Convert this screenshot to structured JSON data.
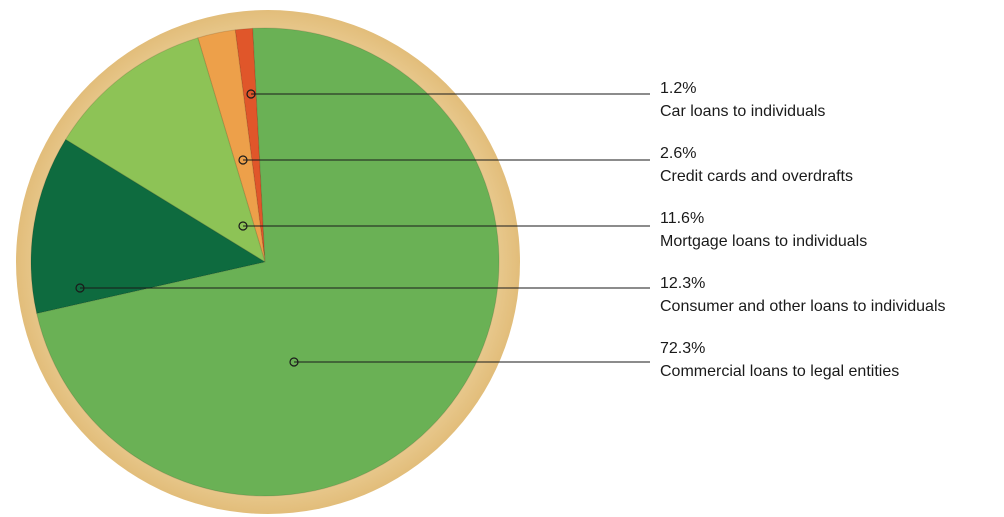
{
  "chart_data": {
    "type": "pie",
    "categories": [
      "Car loans to individuals",
      "Credit cards and overdrafts",
      "Mortgage loans to individuals",
      "Consumer and other loans to individuals",
      "Commercial loans to legal entities"
    ],
    "values": [
      1.2,
      2.6,
      11.6,
      12.3,
      72.3
    ],
    "value_labels": [
      "1.2%",
      "2.6%",
      "11.6%",
      "12.3%",
      "72.3%"
    ],
    "colors": [
      "#e0562a",
      "#eda04a",
      "#8dc356",
      "#0e6b3f",
      "#6ab155"
    ]
  }
}
